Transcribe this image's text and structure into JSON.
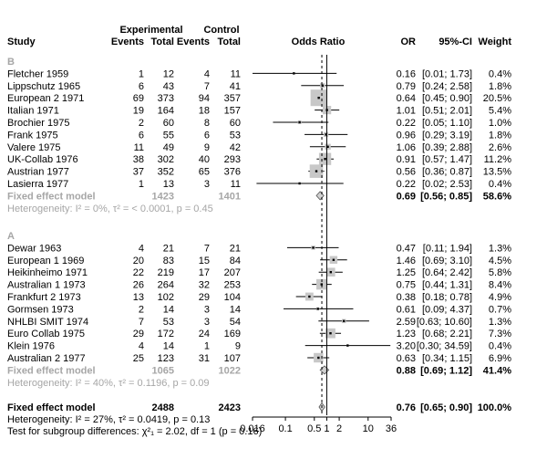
{
  "chart_data": {
    "type": "forest",
    "measure": "Odds Ratio",
    "header": {
      "group_exp": "Experimental",
      "group_ctrl": "Control",
      "study": "Study",
      "events": "Events",
      "total": "Total",
      "plot": "Odds Ratio",
      "or": "OR",
      "ci": "95%-CI",
      "weight": "Weight"
    },
    "subgroups": [
      {
        "label": "B",
        "studies": [
          {
            "name": "Fletcher 1959",
            "ee": "1",
            "te": "12",
            "ec": "4",
            "tc": "11",
            "or": 0.16,
            "lo": 0.01,
            "hi": 1.73,
            "w": 0.4,
            "or_text": "0.16",
            "ci_text": "[0.01;  1.73]",
            "w_text": "0.4%"
          },
          {
            "name": "Lippschutz 1965",
            "ee": "6",
            "te": "43",
            "ec": "7",
            "tc": "41",
            "or": 0.79,
            "lo": 0.24,
            "hi": 2.58,
            "w": 1.8,
            "or_text": "0.79",
            "ci_text": "[0.24;  2.58]",
            "w_text": "1.8%"
          },
          {
            "name": "European 2 1971",
            "ee": "69",
            "te": "373",
            "ec": "94",
            "tc": "357",
            "or": 0.64,
            "lo": 0.45,
            "hi": 0.9,
            "w": 20.5,
            "or_text": "0.64",
            "ci_text": "[0.45;  0.90]",
            "w_text": "20.5%"
          },
          {
            "name": "Italian 1971",
            "ee": "19",
            "te": "164",
            "ec": "18",
            "tc": "157",
            "or": 1.01,
            "lo": 0.51,
            "hi": 2.01,
            "w": 5.4,
            "or_text": "1.01",
            "ci_text": "[0.51;  2.01]",
            "w_text": "5.4%"
          },
          {
            "name": "Brochier 1975",
            "ee": "2",
            "te": "60",
            "ec": "8",
            "tc": "60",
            "or": 0.22,
            "lo": 0.05,
            "hi": 1.1,
            "w": 1.0,
            "or_text": "0.22",
            "ci_text": "[0.05;  1.10]",
            "w_text": "1.0%"
          },
          {
            "name": "Frank 1975",
            "ee": "6",
            "te": "55",
            "ec": "6",
            "tc": "53",
            "or": 0.96,
            "lo": 0.29,
            "hi": 3.19,
            "w": 1.8,
            "or_text": "0.96",
            "ci_text": "[0.29;  3.19]",
            "w_text": "1.8%"
          },
          {
            "name": "Valere 1975",
            "ee": "11",
            "te": "49",
            "ec": "9",
            "tc": "42",
            "or": 1.06,
            "lo": 0.39,
            "hi": 2.88,
            "w": 2.6,
            "or_text": "1.06",
            "ci_text": "[0.39;  2.88]",
            "w_text": "2.6%"
          },
          {
            "name": "UK-Collab 1976",
            "ee": "38",
            "te": "302",
            "ec": "40",
            "tc": "293",
            "or": 0.91,
            "lo": 0.57,
            "hi": 1.47,
            "w": 11.2,
            "or_text": "0.91",
            "ci_text": "[0.57;  1.47]",
            "w_text": "11.2%"
          },
          {
            "name": "Austrian 1977",
            "ee": "37",
            "te": "352",
            "ec": "65",
            "tc": "376",
            "or": 0.56,
            "lo": 0.36,
            "hi": 0.87,
            "w": 13.5,
            "or_text": "0.56",
            "ci_text": "[0.36;  0.87]",
            "w_text": "13.5%"
          },
          {
            "name": "Lasierra 1977",
            "ee": "1",
            "te": "13",
            "ec": "3",
            "tc": "11",
            "or": 0.22,
            "lo": 0.02,
            "hi": 2.53,
            "w": 0.4,
            "or_text": "0.22",
            "ci_text": "[0.02;  2.53]",
            "w_text": "0.4%"
          }
        ],
        "pooled": {
          "label": "Fixed effect model",
          "te": "1423",
          "tc": "1401",
          "or": 0.69,
          "lo": 0.56,
          "hi": 0.85,
          "or_text": "0.69",
          "ci_text": "[0.56;  0.85]",
          "w_text": "58.6%"
        },
        "heterogeneity": "Heterogeneity: I² = 0%, τ² = < 0.0001, p = 0.45"
      },
      {
        "label": "A",
        "studies": [
          {
            "name": "Dewar 1963",
            "ee": "4",
            "te": "21",
            "ec": "7",
            "tc": "21",
            "or": 0.47,
            "lo": 0.11,
            "hi": 1.94,
            "w": 1.3,
            "or_text": "0.47",
            "ci_text": "[0.11;  1.94]",
            "w_text": "1.3%"
          },
          {
            "name": "European 1 1969",
            "ee": "20",
            "te": "83",
            "ec": "15",
            "tc": "84",
            "or": 1.46,
            "lo": 0.69,
            "hi": 3.1,
            "w": 4.5,
            "or_text": "1.46",
            "ci_text": "[0.69;  3.10]",
            "w_text": "4.5%"
          },
          {
            "name": "Heikinheimo 1971",
            "ee": "22",
            "te": "219",
            "ec": "17",
            "tc": "207",
            "or": 1.25,
            "lo": 0.64,
            "hi": 2.42,
            "w": 5.8,
            "or_text": "1.25",
            "ci_text": "[0.64;  2.42]",
            "w_text": "5.8%"
          },
          {
            "name": "Australian 1 1973",
            "ee": "26",
            "te": "264",
            "ec": "32",
            "tc": "253",
            "or": 0.75,
            "lo": 0.44,
            "hi": 1.31,
            "w": 8.4,
            "or_text": "0.75",
            "ci_text": "[0.44;  1.31]",
            "w_text": "8.4%"
          },
          {
            "name": "Frankfurt 2 1973",
            "ee": "13",
            "te": "102",
            "ec": "29",
            "tc": "104",
            "or": 0.38,
            "lo": 0.18,
            "hi": 0.78,
            "w": 4.9,
            "or_text": "0.38",
            "ci_text": "[0.18;  0.78]",
            "w_text": "4.9%"
          },
          {
            "name": "Gormsen 1973",
            "ee": "2",
            "te": "14",
            "ec": "3",
            "tc": "14",
            "or": 0.61,
            "lo": 0.09,
            "hi": 4.37,
            "w": 0.7,
            "or_text": "0.61",
            "ci_text": "[0.09;  4.37]",
            "w_text": "0.7%"
          },
          {
            "name": "NHLBI SMIT 1974",
            "ee": "7",
            "te": "53",
            "ec": "3",
            "tc": "54",
            "or": 2.59,
            "lo": 0.63,
            "hi": 10.6,
            "w": 1.3,
            "or_text": "2.59",
            "ci_text": "[0.63; 10.60]",
            "w_text": "1.3%"
          },
          {
            "name": "Euro Collab 1975",
            "ee": "29",
            "te": "172",
            "ec": "24",
            "tc": "169",
            "or": 1.23,
            "lo": 0.68,
            "hi": 2.21,
            "w": 7.3,
            "or_text": "1.23",
            "ci_text": "[0.68;  2.21]",
            "w_text": "7.3%"
          },
          {
            "name": "Klein 1976",
            "ee": "4",
            "te": "14",
            "ec": "1",
            "tc": "9",
            "or": 3.2,
            "lo": 0.3,
            "hi": 34.59,
            "w": 0.4,
            "or_text": "3.20",
            "ci_text": "[0.30; 34.59]",
            "w_text": "0.4%"
          },
          {
            "name": "Australian 2 1977",
            "ee": "25",
            "te": "123",
            "ec": "31",
            "tc": "107",
            "or": 0.63,
            "lo": 0.34,
            "hi": 1.15,
            "w": 6.9,
            "or_text": "0.63",
            "ci_text": "[0.34;  1.15]",
            "w_text": "6.9%"
          }
        ],
        "pooled": {
          "label": "Fixed effect model",
          "te": "1065",
          "tc": "1022",
          "or": 0.88,
          "lo": 0.69,
          "hi": 1.12,
          "or_text": "0.88",
          "ci_text": "[0.69;  1.12]",
          "w_text": "41.4%"
        },
        "heterogeneity": "Heterogeneity: I² = 40%, τ² = 0.1196, p = 0.09"
      }
    ],
    "overall": {
      "label": "Fixed effect model",
      "te": "2488",
      "tc": "2423",
      "or": 0.76,
      "lo": 0.65,
      "hi": 0.9,
      "or_text": "0.76",
      "ci_text": "[0.65;  0.90]",
      "w_text": "100.0%"
    },
    "overall_heterogeneity": "Heterogeneity: I² = 27%, τ² = 0.0419, p = 0.13",
    "subgroup_test": "Test for subgroup differences: χ²₁ = 2.02, df = 1 (p = 0.16)",
    "x_ticks": [
      {
        "value": 0.016,
        "label": "0.016"
      },
      {
        "value": 0.1,
        "label": "0.1"
      },
      {
        "value": 0.5,
        "label": "0.5"
      },
      {
        "value": 1,
        "label": "1"
      },
      {
        "value": 2,
        "label": "2"
      },
      {
        "value": 10,
        "label": "10"
      },
      {
        "value": 36,
        "label": "36"
      }
    ],
    "xlim": [
      0.016,
      36
    ],
    "x_scale": "log",
    "colors": {
      "ink": "#000000",
      "gray": "#a6a6a6",
      "square": "#c8c8c8",
      "diamond": "#d0d0d0"
    }
  }
}
